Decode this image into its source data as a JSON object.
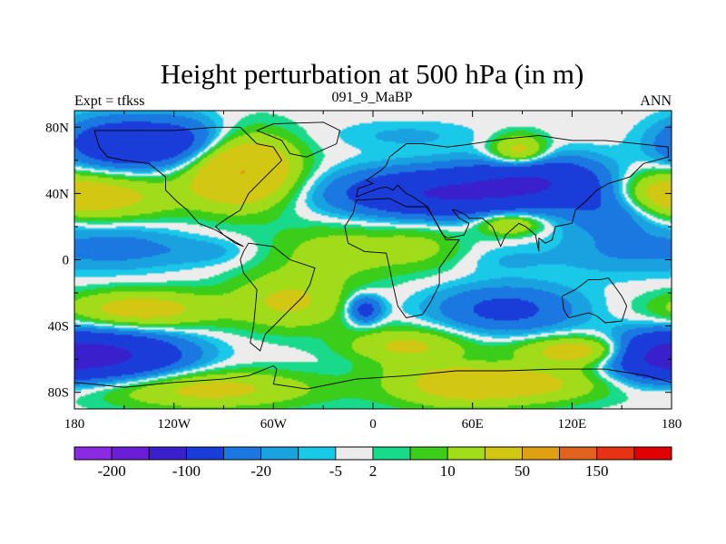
{
  "chart_data": {
    "type": "heatmap",
    "title": "Height perturbation at 500 hPa (in m)",
    "left_label": "Expt = tfkss",
    "center_label": "091_9_MaBP",
    "right_label": "ANN",
    "x_ticks": [
      {
        "value": -180,
        "label": "180"
      },
      {
        "value": -120,
        "label": "120W"
      },
      {
        "value": -60,
        "label": "60W"
      },
      {
        "value": 0,
        "label": "0"
      },
      {
        "value": 60,
        "label": "60E"
      },
      {
        "value": 120,
        "label": "120E"
      },
      {
        "value": 180,
        "label": "180"
      }
    ],
    "y_ticks": [
      {
        "value": 80,
        "label": "80N"
      },
      {
        "value": 40,
        "label": "40N"
      },
      {
        "value": 0,
        "label": "0"
      },
      {
        "value": -40,
        "label": "40S"
      },
      {
        "value": -80,
        "label": "80S"
      }
    ],
    "xlim": [
      -180,
      180
    ],
    "ylim": [
      -90,
      90
    ],
    "colorbar": {
      "colors": [
        "#8a2be2",
        "#6a1fd6",
        "#3a1fcc",
        "#1a3cd8",
        "#1a78e0",
        "#1aa2e0",
        "#1ac8e8",
        "#ececec",
        "#19d98a",
        "#3acd19",
        "#a0dc1a",
        "#d2c814",
        "#e0a014",
        "#e0641e",
        "#e83214",
        "#e00000"
      ],
      "labels": [
        "-200",
        "-100",
        "-20",
        "-5",
        "2",
        "10",
        "50",
        "150"
      ],
      "label_after_box": [
        0,
        2,
        4,
        6,
        7,
        9,
        11,
        13
      ]
    },
    "field_levels": [
      -200,
      -100,
      -50,
      -20,
      -10,
      -5,
      -2,
      2,
      5,
      10,
      20,
      50,
      100,
      150,
      200
    ],
    "features": [
      {
        "lon": -120,
        "lat": 70,
        "amp": -35,
        "slon": 30,
        "slat": 11
      },
      {
        "lon": -160,
        "lat": 70,
        "amp": -25,
        "slon": 20,
        "slat": 10
      },
      {
        "lon": 40,
        "lat": 40,
        "amp": -50,
        "slon": 42,
        "slat": 10
      },
      {
        "lon": 100,
        "lat": 48,
        "amp": -40,
        "slon": 28,
        "slat": 10
      },
      {
        "lon": 150,
        "lat": 30,
        "amp": -22,
        "slon": 22,
        "slat": 10
      },
      {
        "lon": 20,
        "lat": 75,
        "amp": -6,
        "slon": 30,
        "slat": 6
      },
      {
        "lon": -80,
        "lat": 55,
        "amp": 55,
        "slon": 22,
        "slat": 15
      },
      {
        "lon": -160,
        "lat": 38,
        "amp": 25,
        "slon": 30,
        "slat": 10
      },
      {
        "lon": 170,
        "lat": 38,
        "amp": 22,
        "slon": 18,
        "slat": 10
      },
      {
        "lon": 88,
        "lat": 65,
        "amp": 30,
        "slon": 12,
        "slat": 7
      },
      {
        "lon": 82,
        "lat": 22,
        "amp": 25,
        "slon": 14,
        "slat": 5
      },
      {
        "lon": -20,
        "lat": 5,
        "amp": 14,
        "slon": 30,
        "slat": 12
      },
      {
        "lon": 30,
        "lat": 8,
        "amp": 10,
        "slon": 20,
        "slat": 10
      },
      {
        "lon": -140,
        "lat": -30,
        "amp": 28,
        "slon": 32,
        "slat": 8
      },
      {
        "lon": -50,
        "lat": -25,
        "amp": 22,
        "slon": 25,
        "slat": 12
      },
      {
        "lon": 20,
        "lat": -52,
        "amp": 22,
        "slon": 25,
        "slat": 8
      },
      {
        "lon": -100,
        "lat": -78,
        "amp": 25,
        "slon": 45,
        "slat": 8
      },
      {
        "lon": 50,
        "lat": -75,
        "amp": 25,
        "slon": 30,
        "slat": 10
      },
      {
        "lon": 100,
        "lat": -75,
        "amp": 20,
        "slon": 30,
        "slat": 8
      },
      {
        "lon": 125,
        "lat": -55,
        "amp": 30,
        "slon": 25,
        "slat": 6
      },
      {
        "lon": -5,
        "lat": -30,
        "amp": -30,
        "slon": 7,
        "slat": 6
      },
      {
        "lon": -155,
        "lat": -58,
        "amp": -50,
        "slon": 30,
        "slat": 10
      },
      {
        "lon": 170,
        "lat": -58,
        "amp": -40,
        "slon": 20,
        "slat": 10
      },
      {
        "lon": 80,
        "lat": -30,
        "amp": -25,
        "slon": 30,
        "slat": 10
      },
      {
        "lon": -150,
        "lat": 8,
        "amp": -12,
        "slon": 25,
        "slat": 10
      },
      {
        "lon": 150,
        "lat": 5,
        "amp": -10,
        "slon": 30,
        "slat": 10
      },
      {
        "lon": -100,
        "lat": 5,
        "amp": -7,
        "slon": 20,
        "slat": 6
      },
      {
        "lon": 80,
        "lat": 0,
        "amp": -5,
        "slon": 20,
        "slat": 6
      },
      {
        "lon": 50,
        "lat": -60,
        "amp": -4,
        "slon": 40,
        "slat": 3
      }
    ],
    "continents": [
      [
        [
          -168,
          78
        ],
        [
          -120,
          78
        ],
        [
          -95,
          80
        ],
        [
          -80,
          80
        ],
        [
          -70,
          70
        ],
        [
          -60,
          68
        ],
        [
          -55,
          60
        ],
        [
          -65,
          50
        ],
        [
          -75,
          40
        ],
        [
          -80,
          30
        ],
        [
          -88,
          25
        ],
        [
          -95,
          20
        ],
        [
          -90,
          15
        ],
        [
          -83,
          10
        ],
        [
          -78,
          8
        ],
        [
          -85,
          12
        ],
        [
          -95,
          18
        ],
        [
          -105,
          22
        ],
        [
          -112,
          30
        ],
        [
          -118,
          35
        ],
        [
          -125,
          42
        ],
        [
          -125,
          50
        ],
        [
          -135,
          58
        ],
        [
          -150,
          60
        ],
        [
          -160,
          62
        ],
        [
          -165,
          68
        ]
      ],
      [
        [
          -75,
          10
        ],
        [
          -60,
          8
        ],
        [
          -50,
          0
        ],
        [
          -35,
          -5
        ],
        [
          -38,
          -15
        ],
        [
          -42,
          -22
        ],
        [
          -50,
          -30
        ],
        [
          -58,
          -38
        ],
        [
          -65,
          -45
        ],
        [
          -68,
          -55
        ],
        [
          -74,
          -50
        ],
        [
          -72,
          -40
        ],
        [
          -71,
          -30
        ],
        [
          -70,
          -18
        ],
        [
          -78,
          -8
        ],
        [
          -80,
          0
        ],
        [
          -78,
          5
        ]
      ],
      [
        [
          -10,
          36
        ],
        [
          10,
          37
        ],
        [
          20,
          32
        ],
        [
          32,
          32
        ],
        [
          35,
          28
        ],
        [
          44,
          12
        ],
        [
          52,
          12
        ],
        [
          40,
          -5
        ],
        [
          40,
          -15
        ],
        [
          35,
          -25
        ],
        [
          30,
          -33
        ],
        [
          20,
          -35
        ],
        [
          15,
          -28
        ],
        [
          12,
          -15
        ],
        [
          10,
          -5
        ],
        [
          8,
          4
        ],
        [
          -5,
          5
        ],
        [
          -15,
          10
        ],
        [
          -17,
          20
        ],
        [
          -12,
          28
        ]
      ],
      [
        [
          -10,
          38
        ],
        [
          -9,
          43
        ],
        [
          0,
          46
        ],
        [
          -4,
          48
        ],
        [
          5,
          54
        ],
        [
          8,
          57
        ],
        [
          10,
          62
        ],
        [
          20,
          70
        ],
        [
          30,
          70
        ],
        [
          45,
          68
        ],
        [
          60,
          70
        ],
        [
          80,
          73
        ],
        [
          100,
          75
        ],
        [
          120,
          72
        ],
        [
          140,
          72
        ],
        [
          160,
          70
        ],
        [
          178,
          68
        ],
        [
          178,
          62
        ],
        [
          163,
          58
        ],
        [
          155,
          50
        ],
        [
          142,
          46
        ],
        [
          135,
          42
        ],
        [
          128,
          35
        ],
        [
          122,
          30
        ],
        [
          120,
          22
        ],
        [
          110,
          20
        ],
        [
          108,
          12
        ],
        [
          104,
          10
        ],
        [
          100,
          13
        ],
        [
          100,
          5
        ],
        [
          98,
          15
        ],
        [
          92,
          20
        ],
        [
          88,
          22
        ],
        [
          80,
          15
        ],
        [
          77,
          8
        ],
        [
          72,
          20
        ],
        [
          66,
          25
        ],
        [
          58,
          25
        ],
        [
          56,
          27
        ],
        [
          50,
          30
        ],
        [
          48,
          30
        ],
        [
          52,
          25
        ],
        [
          58,
          22
        ],
        [
          55,
          15
        ],
        [
          45,
          13
        ],
        [
          42,
          15
        ],
        [
          35,
          28
        ],
        [
          33,
          32
        ],
        [
          27,
          36
        ],
        [
          24,
          38
        ],
        [
          20,
          40
        ],
        [
          15,
          45
        ],
        [
          12,
          42
        ],
        [
          8,
          44
        ],
        [
          3,
          43
        ]
      ],
      [
        [
          114,
          -22
        ],
        [
          122,
          -18
        ],
        [
          130,
          -12
        ],
        [
          137,
          -12
        ],
        [
          142,
          -11
        ],
        [
          145,
          -15
        ],
        [
          150,
          -22
        ],
        [
          153,
          -28
        ],
        [
          150,
          -37
        ],
        [
          140,
          -38
        ],
        [
          135,
          -34
        ],
        [
          130,
          -32
        ],
        [
          118,
          -35
        ],
        [
          115,
          -30
        ]
      ],
      [
        [
          -60,
          82
        ],
        [
          -30,
          83
        ],
        [
          -20,
          78
        ],
        [
          -22,
          70
        ],
        [
          -40,
          62
        ],
        [
          -50,
          64
        ],
        [
          -55,
          72
        ],
        [
          -70,
          78
        ]
      ],
      [
        [
          -180,
          -74
        ],
        [
          -150,
          -77
        ],
        [
          -120,
          -74
        ],
        [
          -90,
          -72
        ],
        [
          -75,
          -70
        ],
        [
          -60,
          -64
        ],
        [
          -58,
          -66
        ],
        [
          -60,
          -75
        ],
        [
          -40,
          -78
        ],
        [
          -10,
          -72
        ],
        [
          20,
          -70
        ],
        [
          50,
          -67
        ],
        [
          80,
          -67
        ],
        [
          110,
          -66
        ],
        [
          140,
          -66
        ],
        [
          165,
          -70
        ],
        [
          180,
          -74
        ],
        [
          180,
          -90
        ],
        [
          -180,
          -90
        ]
      ]
    ]
  }
}
